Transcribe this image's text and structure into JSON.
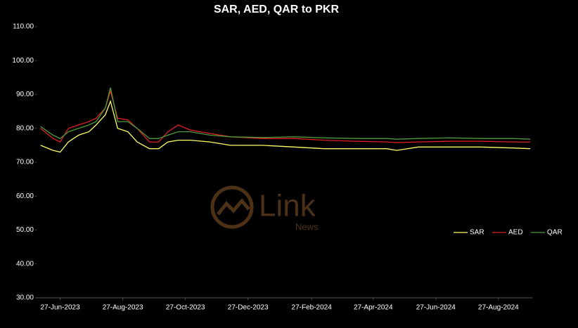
{
  "chart_data": {
    "type": "line",
    "title": "SAR, AED, QAR to PKR",
    "x": [
      "8-Jun-2023",
      "20-Jun-2023",
      "27-Jun-2023",
      "5-Jul-2023",
      "15-Jul-2023",
      "25-Jul-2023",
      "1-Aug-2023",
      "10-Aug-2023",
      "15-Aug-2023",
      "22-Aug-2023",
      "1-Sep-2023",
      "10-Sep-2023",
      "22-Sep-2023",
      "1-Oct-2023",
      "10-Oct-2023",
      "20-Oct-2023",
      "1-Nov-2023",
      "20-Nov-2023",
      "10-Dec-2023",
      "10-Jan-2024",
      "10-Feb-2024",
      "10-Mar-2024",
      "10-Apr-2024",
      "10-May-2024",
      "20-May-2024",
      "10-Jun-2024",
      "10-Jul-2024",
      "10-Aug-2024",
      "10-Sep-2024",
      "27-Sep-2024"
    ],
    "series": [
      {
        "name": "SAR",
        "color": "#ffff66",
        "values": [
          75,
          73.5,
          73,
          76,
          78,
          79,
          81,
          84,
          88,
          80,
          79,
          76,
          74,
          74,
          76,
          76.5,
          76.5,
          76,
          75,
          75,
          74.5,
          74,
          74,
          74,
          73.5,
          74.5,
          74.5,
          74.5,
          74.2,
          74
        ]
      },
      {
        "name": "AED",
        "color": "#e02020",
        "values": [
          80,
          77,
          76,
          80,
          81,
          82,
          83,
          86,
          91,
          83,
          82.5,
          80,
          76,
          76,
          79,
          81,
          79.5,
          78.5,
          77.5,
          77,
          77,
          76.5,
          76.2,
          76,
          75.8,
          76,
          76.2,
          76.2,
          76,
          76
        ]
      },
      {
        "name": "QAR",
        "color": "#4f9a3a",
        "values": [
          80.5,
          78,
          77,
          79,
          80,
          81,
          82,
          86,
          92,
          82,
          82,
          80,
          77,
          77,
          78,
          79,
          79,
          78,
          77.5,
          77.3,
          77.5,
          77.2,
          77,
          77,
          76.8,
          77,
          77.2,
          77,
          77,
          76.8
        ]
      }
    ],
    "xlim": [
      "4-Jun-2023",
      "29-Sep-2024"
    ],
    "xticks": [
      "27-Jun-2023",
      "27-Aug-2023",
      "27-Oct-2023",
      "27-Dec-2023",
      "27-Feb-2024",
      "27-Apr-2024",
      "27-Jun-2024",
      "27-Aug-2024"
    ],
    "ylim": [
      30,
      110
    ],
    "yticks": [
      {
        "value": 30,
        "label": "30.00"
      },
      {
        "value": 40,
        "label": "40.00"
      },
      {
        "value": 50,
        "label": "50.00"
      },
      {
        "value": 60,
        "label": "60.00"
      },
      {
        "value": 70,
        "label": "70.00"
      },
      {
        "value": 80,
        "label": "80.00"
      },
      {
        "value": 90,
        "label": "90.00"
      },
      {
        "value": 100,
        "label": "100.00"
      },
      {
        "value": 110,
        "label": "110.00"
      }
    ],
    "legend": "right"
  },
  "watermark": {
    "text": "Link",
    "subtext": "News"
  }
}
